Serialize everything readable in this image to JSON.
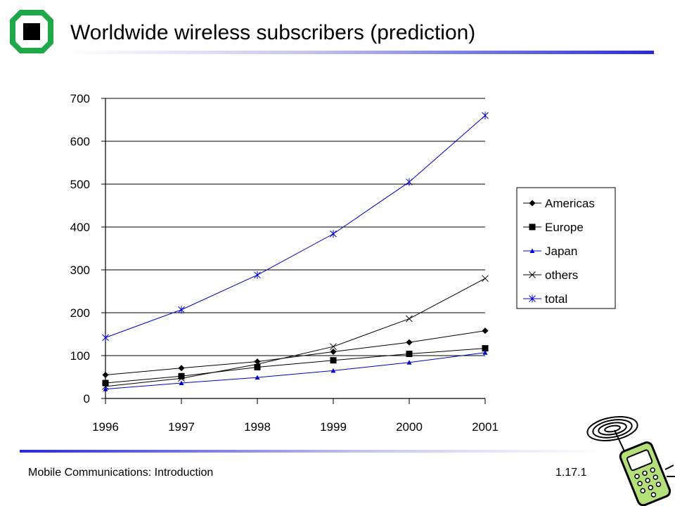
{
  "slide": {
    "title": "Worldwide wireless subscribers (prediction)",
    "footer_left": "Mobile Communications: Introduction",
    "footer_right": "1.17.1"
  },
  "colors": {
    "accent": "#2a2ad8",
    "logo_green": "#1fa84a",
    "phone_green": "#b4e07a",
    "axis": "#000000"
  },
  "icons": {
    "logo": "university-logo-icon",
    "phone": "mobile-phone-clipart-icon"
  },
  "chart_data": {
    "type": "line",
    "title": "",
    "xlabel": "",
    "ylabel": "",
    "categories": [
      "1996",
      "1997",
      "1998",
      "1999",
      "2000",
      "2001"
    ],
    "ylim": [
      0,
      700
    ],
    "yticks": [
      "0",
      "100",
      "200",
      "300",
      "400",
      "500",
      "600",
      "700"
    ],
    "grid": true,
    "legend_position": "right",
    "series": [
      {
        "name": "Americas",
        "values": [
          55,
          71,
          86,
          109,
          131,
          158
        ],
        "color": "#000000",
        "marker": "diamond"
      },
      {
        "name": "Europe",
        "values": [
          36,
          52,
          73,
          89,
          104,
          117
        ],
        "color": "#000000",
        "marker": "square"
      },
      {
        "name": "Japan",
        "values": [
          22,
          36,
          49,
          65,
          84,
          107
        ],
        "color": "#0000cc",
        "marker": "triangle"
      },
      {
        "name": "others",
        "values": [
          28,
          47,
          80,
          121,
          186,
          280
        ],
        "color": "#000000",
        "marker": "x"
      },
      {
        "name": "total",
        "values": [
          142,
          207,
          288,
          384,
          505,
          660
        ],
        "color": "#0000cc",
        "marker": "star"
      }
    ]
  }
}
